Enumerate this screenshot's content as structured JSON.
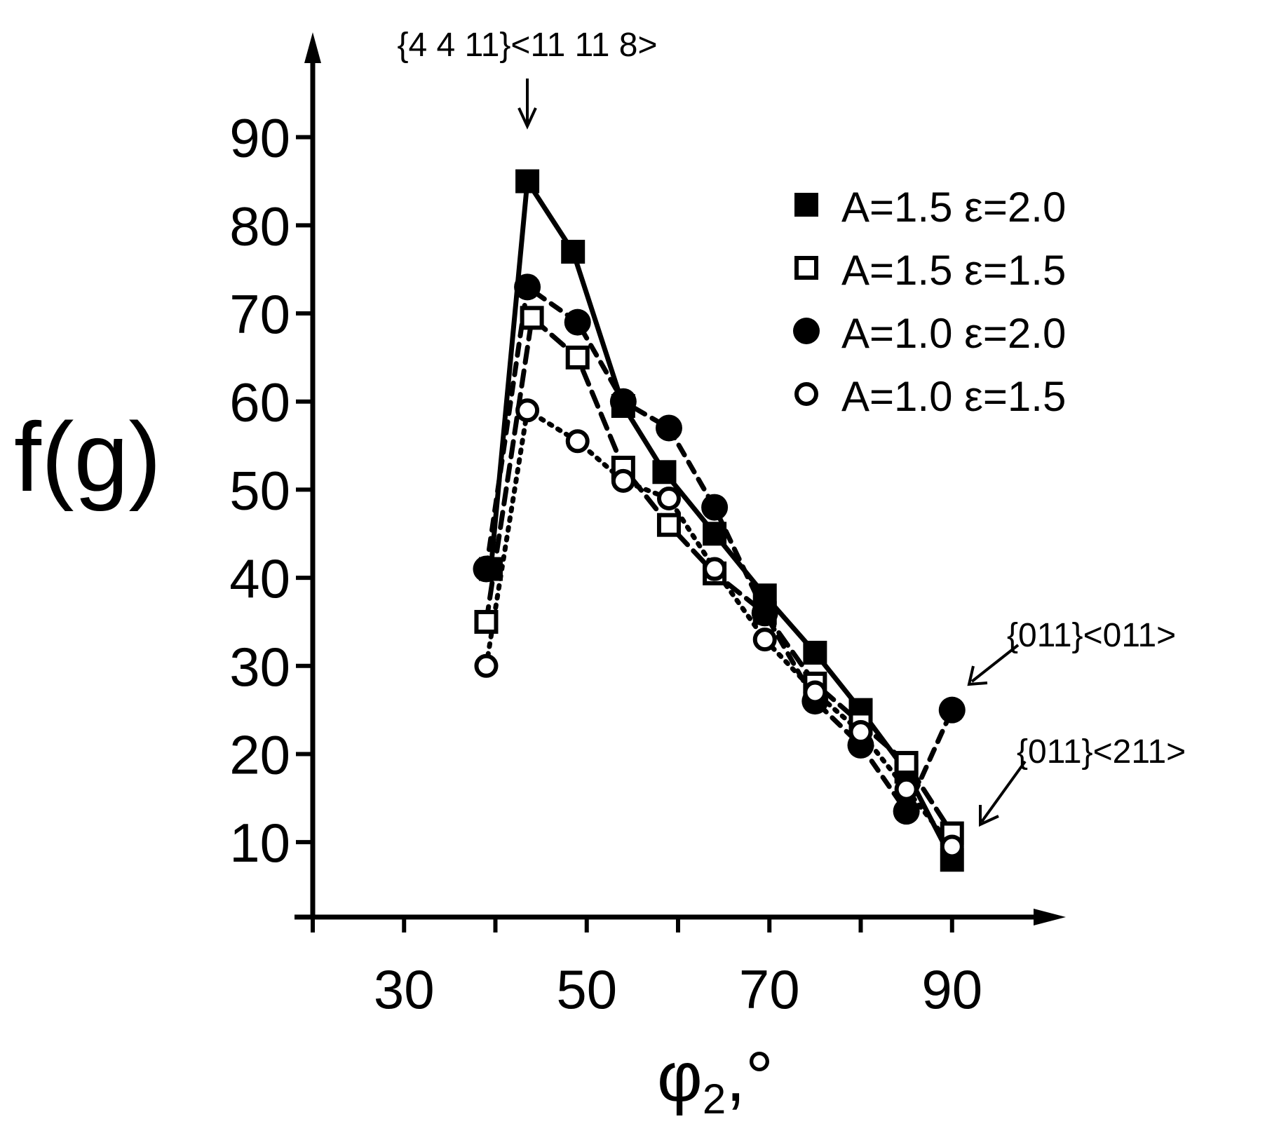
{
  "chart_data": {
    "type": "line",
    "title": "",
    "xlabel": "φ2,°",
    "ylabel": "f(g)",
    "xlim": [
      20,
      100
    ],
    "ylim": [
      1.5,
      100
    ],
    "xticks": [
      30,
      50,
      70,
      90
    ],
    "xticks_minor": [
      30,
      40,
      50,
      60,
      70,
      80,
      90
    ],
    "yticks": [
      10,
      20,
      30,
      40,
      50,
      60,
      70,
      80,
      90
    ],
    "grid": false,
    "legend_position": "top-right",
    "series": [
      {
        "name": "A=1.5  ε=2.0",
        "marker": "filled-square",
        "line": "solid",
        "x": [
          39.5,
          43.5,
          48.5,
          54,
          58.5,
          64,
          69.5,
          75,
          80,
          85,
          90
        ],
        "y": [
          41,
          85,
          77,
          59.5,
          52,
          45,
          38,
          31.5,
          25,
          18,
          8
        ]
      },
      {
        "name": "A=1.5  ε=1.5",
        "marker": "open-square",
        "line": "long-dash",
        "x": [
          39,
          44,
          49,
          54,
          59,
          64,
          69.5,
          75,
          80,
          85,
          90
        ],
        "y": [
          35,
          69.5,
          65,
          52.5,
          46,
          40.5,
          36,
          28,
          23.5,
          19,
          11
        ]
      },
      {
        "name": "A=1.0  ε=2.0",
        "marker": "filled-circle",
        "line": "dash",
        "x": [
          39,
          43.5,
          49,
          54,
          59,
          64,
          69.5,
          75,
          80,
          85,
          90
        ],
        "y": [
          41,
          73,
          69,
          60,
          57,
          48,
          36,
          26,
          21,
          13.5,
          25
        ]
      },
      {
        "name": "A=1.0  ε=1.5",
        "marker": "open-circle",
        "line": "dot",
        "x": [
          39,
          43.5,
          49,
          54,
          59,
          64,
          69.5,
          75,
          80,
          85,
          90
        ],
        "y": [
          30,
          59,
          55.5,
          51,
          49,
          41,
          33,
          27,
          22.5,
          16,
          9.5
        ]
      }
    ],
    "annotations": [
      {
        "text": "{4 4 11}<11 11 8>",
        "x": 43.5,
        "y": 85
      },
      {
        "text": "{011}<011>",
        "x": 90,
        "y": 25
      },
      {
        "text": "{011}<211>",
        "x": 90,
        "y": 9.5
      }
    ]
  }
}
